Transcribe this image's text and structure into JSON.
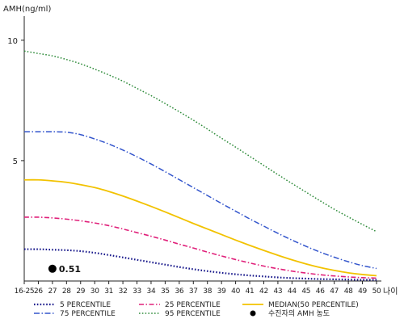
{
  "chart_data": {
    "type": "line",
    "ylabel": "AMH(ng/ml)",
    "xlabel": "나이",
    "ylim": [
      0,
      11
    ],
    "y_ticks": [
      5,
      10
    ],
    "categories": [
      "16-25",
      "26",
      "27",
      "28",
      "29",
      "30",
      "31",
      "32",
      "33",
      "34",
      "35",
      "36",
      "37",
      "38",
      "39",
      "40",
      "41",
      "42",
      "43",
      "44",
      "45",
      "46",
      "47",
      "48",
      "49",
      "50"
    ],
    "series": [
      {
        "name": "5 PERCENTILE",
        "color": "#1a1a8c",
        "dash": "1.6,2.2",
        "width": 2.2,
        "values": [
          1.32,
          1.32,
          1.3,
          1.28,
          1.24,
          1.17,
          1.08,
          0.98,
          0.88,
          0.78,
          0.68,
          0.58,
          0.49,
          0.41,
          0.34,
          0.28,
          0.23,
          0.19,
          0.15,
          0.12,
          0.1,
          0.08,
          0.07,
          0.06,
          0.05,
          0.05
        ]
      },
      {
        "name": "25 PERCENTILE",
        "color": "#e0207a",
        "dash": "6,2.5,1.5,2.5",
        "width": 1.6,
        "values": [
          2.65,
          2.65,
          2.62,
          2.57,
          2.5,
          2.41,
          2.3,
          2.16,
          2.01,
          1.86,
          1.7,
          1.53,
          1.37,
          1.2,
          1.04,
          0.89,
          0.75,
          0.62,
          0.51,
          0.41,
          0.33,
          0.26,
          0.21,
          0.17,
          0.14,
          0.12
        ]
      },
      {
        "name": "MEDIAN(50 PERCENTILE)",
        "color": "#f2c200",
        "dash": "",
        "width": 1.8,
        "values": [
          4.2,
          4.2,
          4.16,
          4.1,
          4.0,
          3.88,
          3.72,
          3.53,
          3.32,
          3.1,
          2.87,
          2.63,
          2.39,
          2.16,
          1.93,
          1.7,
          1.48,
          1.27,
          1.07,
          0.88,
          0.71,
          0.56,
          0.44,
          0.34,
          0.27,
          0.22
        ]
      },
      {
        "name": "75 PERCENTILE",
        "color": "#3355cc",
        "dash": "7,2.5,1.5,2.5",
        "width": 1.5,
        "values": [
          6.2,
          6.2,
          6.2,
          6.18,
          6.08,
          5.9,
          5.69,
          5.44,
          5.16,
          4.86,
          4.54,
          4.21,
          3.88,
          3.55,
          3.22,
          2.9,
          2.58,
          2.28,
          1.98,
          1.7,
          1.44,
          1.2,
          0.99,
          0.8,
          0.64,
          0.52
        ]
      },
      {
        "name": "95 PERCENTILE",
        "color": "#2e8b3a",
        "dash": "1.6,2.2",
        "width": 1.5,
        "values": [
          9.55,
          9.45,
          9.35,
          9.2,
          9.02,
          8.8,
          8.56,
          8.3,
          8.0,
          7.7,
          7.37,
          7.03,
          6.68,
          6.31,
          5.93,
          5.56,
          5.18,
          4.8,
          4.42,
          4.05,
          3.69,
          3.33,
          2.98,
          2.66,
          2.35,
          2.05
        ]
      }
    ],
    "points": [
      {
        "name": "수진자의 AMH 농도",
        "x": "27",
        "y": 0.51,
        "label": "0.51",
        "color": "#000000"
      }
    ],
    "legend_order": [
      "5 PERCENTILE",
      "25 PERCENTILE",
      "MEDIAN(50 PERCENTILE)",
      "75 PERCENTILE",
      "95 PERCENTILE",
      "수진자의 AMH 농도"
    ],
    "grid": false,
    "legend": "bottom"
  }
}
